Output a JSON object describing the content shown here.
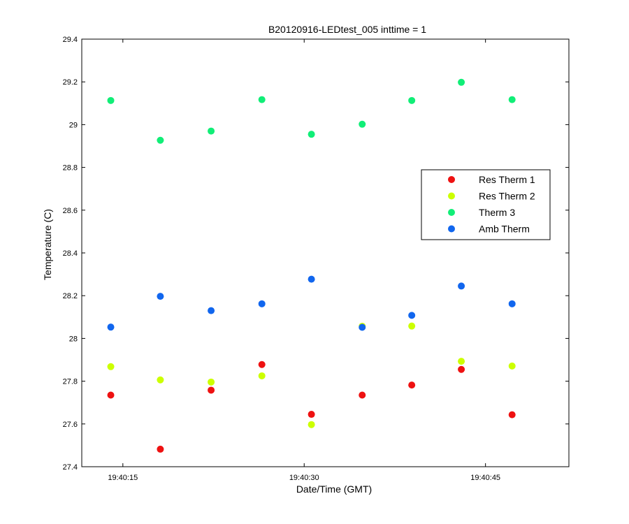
{
  "chart_data": {
    "type": "scatter",
    "title": "B20120916-LEDtest_005 inttime = 1",
    "xlabel": "Date/Time (GMT)",
    "ylabel": "Temperature (C)",
    "ylim": [
      27.4,
      29.4
    ],
    "yticks": [
      27.4,
      27.6,
      27.8,
      28,
      28.2,
      28.4,
      28.6,
      28.8,
      29,
      29.2,
      29.4
    ],
    "ytick_labels": [
      "27.4",
      "27.6",
      "27.8",
      "28",
      "28.2",
      "28.4",
      "28.6",
      "28.8",
      "29",
      "29.2",
      "29.4"
    ],
    "xlim": [
      "19:40:11.6",
      "19:40:51.9"
    ],
    "xticks": [
      "19:40:15",
      "19:40:30",
      "19:40:45"
    ],
    "xtick_labels": [
      "19:40:15",
      "19:40:30",
      "19:40:45"
    ],
    "x": [
      "19:40:14.0",
      "19:40:18.1",
      "19:40:22.3",
      "19:40:26.5",
      "19:40:30.6",
      "19:40:34.8",
      "19:40:38.9",
      "19:40:43.0",
      "19:40:47.2"
    ],
    "grid": false,
    "legend_position": "right",
    "series": [
      {
        "name": "Res Therm 1",
        "color": "#ee1111",
        "values": [
          27.735,
          27.482,
          27.758,
          27.878,
          27.645,
          27.735,
          27.782,
          27.855,
          27.643
        ]
      },
      {
        "name": "Res Therm 2",
        "color": "#ccff00",
        "values": [
          27.868,
          27.806,
          27.796,
          27.825,
          27.597,
          28.057,
          28.058,
          27.893,
          27.871
        ]
      },
      {
        "name": "Therm 3",
        "color": "#11ee77",
        "values": [
          29.113,
          28.927,
          28.97,
          29.117,
          28.955,
          29.002,
          29.113,
          29.198,
          29.117
        ]
      },
      {
        "name": "Amb Therm",
        "color": "#1166ee",
        "values": [
          28.053,
          28.197,
          28.13,
          28.162,
          28.277,
          28.052,
          28.108,
          28.245,
          28.162
        ]
      }
    ]
  }
}
